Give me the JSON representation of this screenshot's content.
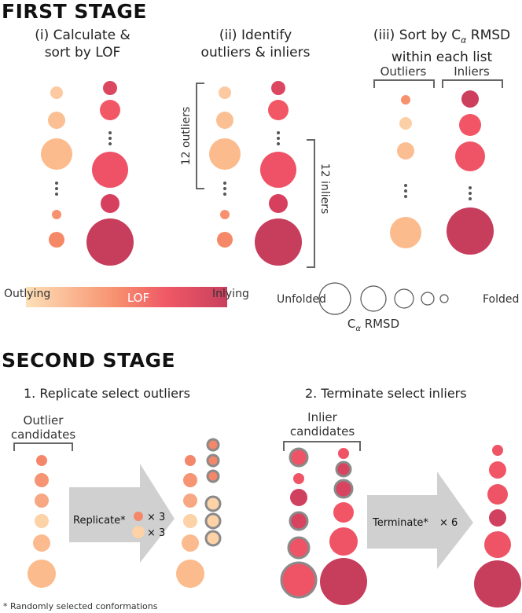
{
  "first_stage": {
    "title": "FIRST STAGE",
    "step1": {
      "line1": "(i) Calculate &",
      "line2": "sort by LOF"
    },
    "step2": {
      "line1": "(ii) Identify",
      "line2": "outliers & inliers",
      "bracket_outliers": "12 outliers",
      "bracket_inliers": "12 inliers"
    },
    "step3": {
      "line1_pre": "(iii) Sort by C",
      "line1_sub": "α",
      "line1_post": " RMSD",
      "line2": "within each list",
      "outliers_header": "Outliers",
      "inliers_header": "Inliers"
    }
  },
  "legend": {
    "lof_label": "LOF",
    "outlying": "Outlying",
    "inlying": "Inlying",
    "unfolded": "Unfolded",
    "folded": "Folded",
    "rmsd_pre": "C",
    "rmsd_sub": "α",
    "rmsd_post": " RMSD"
  },
  "second_stage": {
    "title": "SECOND STAGE",
    "replicate_title": "1. Replicate select outliers",
    "terminate_title": "2. Terminate select inliers",
    "outlier_candidates_l1": "Outlier",
    "outlier_candidates_l2": "candidates",
    "inlier_candidates_l1": "Inlier",
    "inlier_candidates_l2": "candidates",
    "replicate_label": "Replicate*",
    "times3_a": "× 3",
    "times3_b": "× 3",
    "terminate_label": "Terminate*",
    "times6": "× 6",
    "footnote": "* Randomly selected conformations"
  },
  "colors": {
    "lof_outlying": "#fbd0a0",
    "lof_mid": "#f46a62",
    "lof_inlying": "#c8405e",
    "ring": "#8a8a8a",
    "arrow": "#d0d0d0"
  }
}
